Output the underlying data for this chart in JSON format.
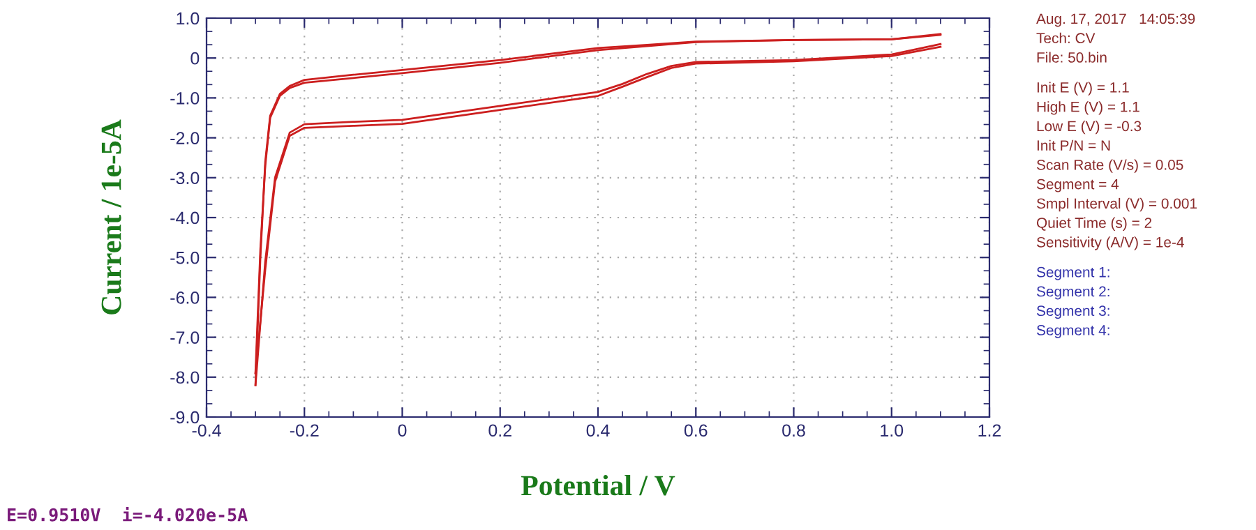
{
  "chart_data": {
    "type": "line",
    "xlabel": "Potential / V",
    "ylabel": "Current / 1e-5A",
    "series": [
      {
        "color": "#cc1f1f",
        "x": [
          -0.3,
          -0.29,
          -0.28,
          -0.27,
          -0.25,
          -0.23,
          -0.2,
          -0.1,
          0.0,
          0.2,
          0.4,
          0.5,
          0.6,
          0.8,
          1.0,
          1.1
        ],
        "values": [
          -8.2,
          -5.0,
          -2.6,
          -1.45,
          -0.9,
          -0.7,
          -0.55,
          -0.42,
          -0.3,
          -0.05,
          0.25,
          0.33,
          0.41,
          0.45,
          0.47,
          0.6
        ]
      },
      {
        "color": "#cc1f1f",
        "x": [
          -0.3,
          -0.28,
          -0.26,
          -0.23,
          -0.2,
          -0.1,
          0.0,
          0.2,
          0.4,
          0.45,
          0.5,
          0.55,
          0.6,
          0.8,
          1.0,
          1.1
        ],
        "values": [
          -8.2,
          -5.1,
          -3.0,
          -1.87,
          -1.66,
          -1.6,
          -1.55,
          -1.2,
          -0.85,
          -0.65,
          -0.4,
          -0.2,
          -0.1,
          -0.05,
          0.09,
          0.35
        ]
      },
      {
        "color": "#cc1f1f",
        "x": [
          -0.3,
          -0.29,
          -0.28,
          -0.27,
          -0.25,
          -0.23,
          -0.2,
          -0.1,
          0.0,
          0.2,
          0.4,
          0.5,
          0.6,
          0.8,
          1.0,
          1.1
        ],
        "values": [
          -7.9,
          -4.8,
          -2.7,
          -1.5,
          -0.95,
          -0.75,
          -0.62,
          -0.5,
          -0.38,
          -0.12,
          0.2,
          0.3,
          0.4,
          0.45,
          0.47,
          0.58
        ]
      },
      {
        "color": "#cc1f1f",
        "x": [
          -0.3,
          -0.28,
          -0.26,
          -0.23,
          -0.2,
          -0.1,
          0.0,
          0.2,
          0.4,
          0.45,
          0.5,
          0.55,
          0.6,
          0.8,
          1.0,
          1.1
        ],
        "values": [
          -7.9,
          -5.3,
          -3.1,
          -1.95,
          -1.75,
          -1.7,
          -1.65,
          -1.3,
          -0.95,
          -0.72,
          -0.48,
          -0.25,
          -0.14,
          -0.08,
          0.05,
          0.28
        ]
      }
    ],
    "xlim": [
      -0.4,
      1.2
    ],
    "ylim": [
      -9.0,
      1.0
    ],
    "xticks": [
      -0.4,
      -0.2,
      0,
      0.2,
      0.4,
      0.6,
      0.8,
      {
        "value": 1.0,
        "label": "1.0"
      },
      1.2
    ],
    "yticks": [
      {
        "value": 1.0,
        "label": "1.0"
      },
      0,
      {
        "value": -1.0,
        "label": "-1.0"
      },
      {
        "value": -2.0,
        "label": "-2.0"
      },
      {
        "value": -3.0,
        "label": "-3.0"
      },
      {
        "value": -4.0,
        "label": "-4.0"
      },
      {
        "value": -5.0,
        "label": "-5.0"
      },
      {
        "value": -6.0,
        "label": "-6.0"
      },
      {
        "value": -7.0,
        "label": "-7.0"
      },
      {
        "value": -8.0,
        "label": "-8.0"
      },
      {
        "value": -9.0,
        "label": "-9.0"
      }
    ],
    "grid": true,
    "line_style": "solid",
    "marker": "none",
    "legend": false,
    "annotations": [
      "Aug. 17, 2017   14:05:39",
      "Tech: CV",
      "File: 50.bin",
      "Init E (V) = 1.1",
      "High E (V) = 1.1",
      "Low E (V) = -0.3",
      "Init P/N = N",
      "Scan Rate (V/s) = 0.05",
      "Segment = 4",
      "Smpl Interval (V) = 0.001",
      "Quiet Time (s) = 2",
      "Sensitivity (A/V) = 1e-4",
      "Segment 1:",
      "Segment 2:",
      "Segment 3:",
      "Segment 4:",
      "E=0.9510V  i=-4.020e-5A"
    ]
  }
}
